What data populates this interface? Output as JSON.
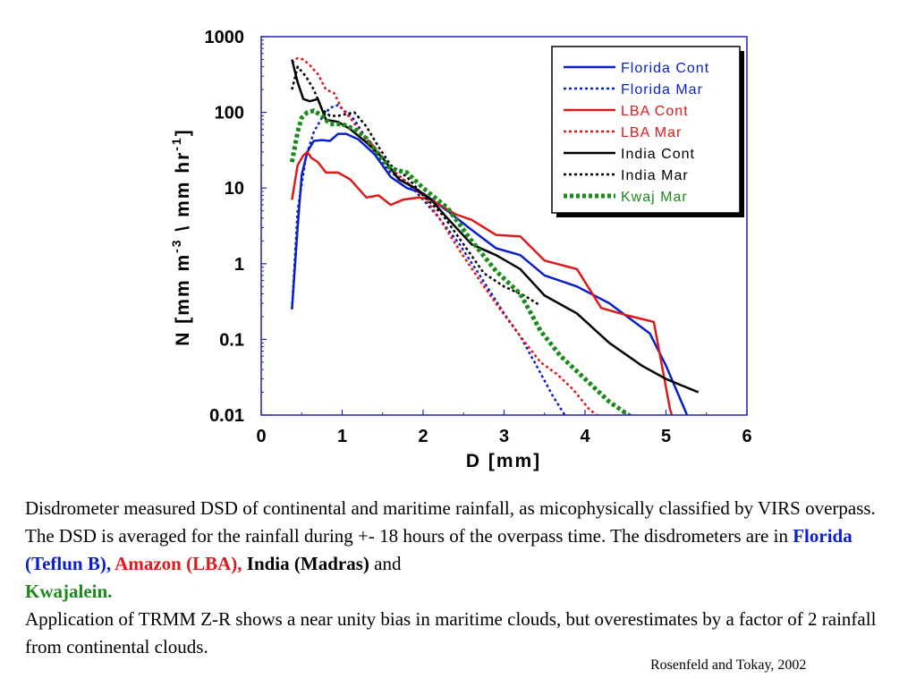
{
  "chart_data": {
    "type": "line",
    "xlabel": "D [mm]",
    "ylabel": "N [mm m^-3 \\ mm hr^-1]",
    "xlim": [
      0,
      6
    ],
    "ylim": [
      0.01,
      1000
    ],
    "yscale": "log",
    "xticks": [
      "0",
      "1",
      "2",
      "3",
      "4",
      "5",
      "6"
    ],
    "yticks": [
      "0.01",
      "0.1",
      "1",
      "10",
      "100",
      "1000"
    ],
    "grid": false,
    "legend_position": "top-right",
    "series": [
      {
        "name": "Florida Cont",
        "style": "solid",
        "color": "#0a1fc8",
        "x": [
          0.38,
          0.45,
          0.5,
          0.57,
          0.65,
          0.75,
          0.85,
          0.95,
          1.05,
          1.2,
          1.4,
          1.6,
          1.8,
          2.0,
          2.3,
          2.6,
          2.9,
          3.2,
          3.5,
          3.9,
          4.3,
          4.8,
          5.0,
          5.3
        ],
        "y": [
          0.25,
          3,
          15,
          30,
          42,
          43,
          42,
          52,
          52,
          44,
          28,
          14,
          10,
          8.5,
          5,
          2.8,
          1.6,
          1.3,
          0.7,
          0.5,
          0.3,
          0.12,
          0.045,
          0.008
        ]
      },
      {
        "name": "Florida Mar",
        "style": "dot",
        "color": "#0a1fc8",
        "x": [
          0.38,
          0.45,
          0.55,
          0.65,
          0.75,
          0.85,
          0.95,
          1.05,
          1.15,
          1.3,
          1.45,
          1.6,
          1.8,
          2.0,
          2.2,
          2.45,
          2.7,
          3.0,
          3.2,
          3.4,
          3.6,
          3.75
        ],
        "y": [
          0.25,
          5,
          25,
          55,
          85,
          115,
          125,
          100,
          80,
          45,
          25,
          16,
          12,
          7,
          4,
          1.8,
          0.7,
          0.22,
          0.11,
          0.045,
          0.018,
          0.01
        ]
      },
      {
        "name": "LBA Cont",
        "style": "solid",
        "color": "#dd1a1a",
        "x": [
          0.38,
          0.45,
          0.52,
          0.57,
          0.62,
          0.7,
          0.8,
          0.95,
          1.1,
          1.3,
          1.45,
          1.6,
          1.75,
          1.95,
          2.1,
          2.4,
          2.6,
          2.9,
          3.2,
          3.5,
          3.9,
          4.2,
          4.5,
          4.85,
          5.05,
          5.1
        ],
        "y": [
          7,
          20,
          27,
          30,
          25,
          22,
          16,
          16,
          13,
          7.5,
          8,
          6,
          7,
          7.5,
          7,
          4.5,
          3.8,
          2.4,
          2.3,
          1.1,
          0.85,
          0.26,
          0.21,
          0.17,
          0.012,
          0.008
        ]
      },
      {
        "name": "LBA Mar",
        "style": "dot",
        "color": "#dd1a1a",
        "x": [
          0.38,
          0.45,
          0.52,
          0.6,
          0.7,
          0.8,
          0.9,
          1.0,
          1.1,
          1.2,
          1.3,
          1.45,
          1.6,
          1.8,
          2.0,
          2.2,
          2.45,
          2.7,
          2.95,
          3.2,
          3.45,
          3.65,
          3.85,
          4.05,
          4.2
        ],
        "y": [
          450,
          520,
          500,
          420,
          320,
          200,
          180,
          110,
          85,
          60,
          45,
          30,
          18,
          12,
          8,
          4,
          1.5,
          0.6,
          0.25,
          0.11,
          0.05,
          0.035,
          0.022,
          0.012,
          0.009
        ]
      },
      {
        "name": "India Cont",
        "style": "solid",
        "color": "#000000",
        "x": [
          0.38,
          0.45,
          0.52,
          0.6,
          0.7,
          0.8,
          0.95,
          1.1,
          1.3,
          1.5,
          1.7,
          1.9,
          2.1,
          2.3,
          2.6,
          2.9,
          3.2,
          3.5,
          3.9,
          4.3,
          4.7,
          5.0,
          5.4
        ],
        "y": [
          500,
          250,
          150,
          140,
          150,
          80,
          75,
          60,
          40,
          25,
          13,
          10,
          7,
          4,
          1.8,
          1.3,
          0.85,
          0.38,
          0.22,
          0.09,
          0.045,
          0.03,
          0.02
        ]
      },
      {
        "name": "India Mar",
        "style": "dot",
        "color": "#000000",
        "x": [
          0.38,
          0.45,
          0.55,
          0.65,
          0.75,
          0.85,
          0.95,
          1.05,
          1.15,
          1.3,
          1.45,
          1.6,
          1.8,
          2.0,
          2.25,
          2.5,
          2.75,
          3.0,
          3.25,
          3.45
        ],
        "y": [
          200,
          400,
          300,
          200,
          110,
          90,
          90,
          95,
          100,
          65,
          35,
          20,
          14,
          8,
          4.3,
          1.8,
          0.75,
          0.5,
          0.38,
          0.28
        ]
      },
      {
        "name": "Kwaj Mar",
        "style": "thick-dot",
        "color": "#1a8a1a",
        "x": [
          0.38,
          0.45,
          0.5,
          0.57,
          0.65,
          0.75,
          0.85,
          1.0,
          1.15,
          1.3,
          1.45,
          1.6,
          1.8,
          2.0,
          2.3,
          2.6,
          2.9,
          3.2,
          3.45,
          3.7,
          4.0,
          4.3,
          4.6
        ],
        "y": [
          22,
          55,
          85,
          100,
          105,
          90,
          70,
          70,
          60,
          45,
          28,
          18,
          16,
          10,
          5.5,
          2,
          0.8,
          0.4,
          0.13,
          0.06,
          0.03,
          0.015,
          0.009
        ]
      }
    ]
  },
  "caption": {
    "line1": "Disdrometer measured DSD of continental and maritime rainfall, as micophysically classified by VIRS overpass. The DSD is averaged for the rainfall during  +- 18 hours of the overpass time. The disdrometers are in ",
    "florida": "Florida (Teflun B),",
    "amazon": " Amazon (LBA),",
    "india": " India (Madras)",
    "and": " and ",
    "kwaj": "Kwajalein.",
    "line2": "Application of TRMM Z-R shows a near unity bias in maritime clouds, but overestimates by a factor of 2 rainfall from continental clouds."
  },
  "credit": "Rosenfeld and Tokay, 2002"
}
